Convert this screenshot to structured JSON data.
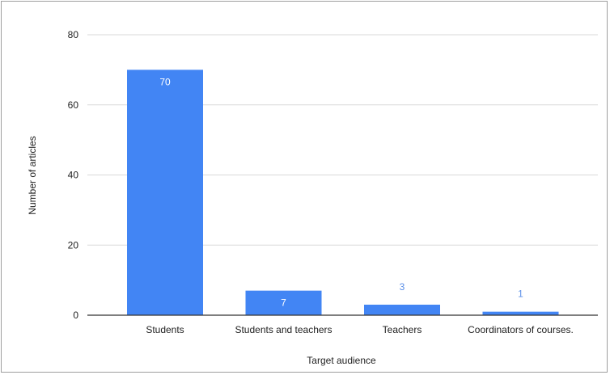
{
  "chart_data": {
    "type": "bar",
    "categories": [
      "Students",
      "Students and teachers",
      "Teachers",
      "Coordinators of courses."
    ],
    "values": [
      70,
      7,
      3,
      1
    ],
    "data_labels": [
      "70",
      "7",
      "3",
      "1"
    ],
    "title": "",
    "xlabel": "Target audience",
    "ylabel": "Number of articles",
    "ylim": [
      0,
      80
    ],
    "yticks": [
      0,
      20,
      40,
      60,
      80
    ],
    "ytick_labels": [
      "0",
      "20",
      "40",
      "60",
      "80"
    ],
    "grid": true,
    "legend": "none",
    "colors": {
      "bar": "#4285f4",
      "label_inside": "#ffffff",
      "label_outside": "#5b8fe8",
      "grid": "#d9d9d9",
      "axis": "#333333"
    }
  }
}
